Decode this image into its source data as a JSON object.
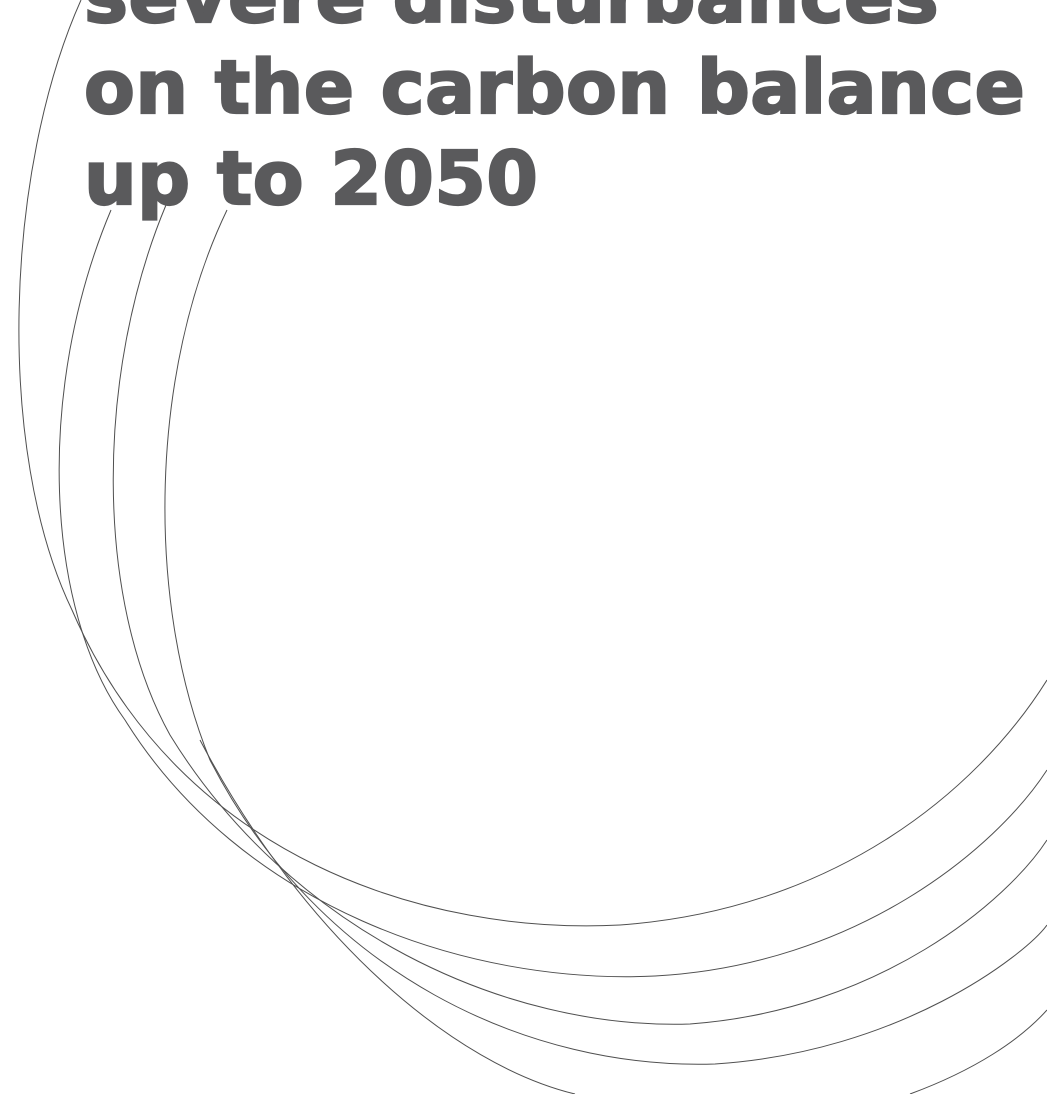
{
  "title": {
    "line_1": "severe disturbances",
    "line_2": "on the carbon balance",
    "line_3": "up to 2050"
  },
  "colors": {
    "title_text": "#5a5a5c",
    "arc_stroke": "#4f4f4f",
    "background": "#ffffff"
  }
}
